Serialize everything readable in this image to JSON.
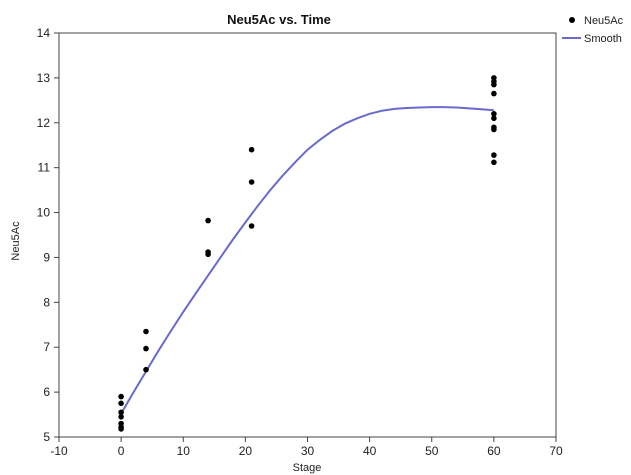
{
  "chart_data": {
    "type": "scatter",
    "title": "Neu5Ac vs. Time",
    "xlabel": "Stage",
    "ylabel": "Neu5Ac",
    "xlim": [
      -10,
      70
    ],
    "ylim": [
      5,
      14
    ],
    "xticks": [
      -10,
      0,
      10,
      20,
      30,
      40,
      50,
      60,
      70
    ],
    "yticks": [
      5,
      6,
      7,
      8,
      9,
      10,
      11,
      12,
      13,
      14
    ],
    "grid": false,
    "legend_position": "top-right, outside plot",
    "series": [
      {
        "name": "Neu5Ac",
        "kind": "points",
        "color": "#000000",
        "points": [
          [
            0,
            5.9
          ],
          [
            0,
            5.75
          ],
          [
            0,
            5.55
          ],
          [
            0,
            5.45
          ],
          [
            0,
            5.3
          ],
          [
            0,
            5.22
          ],
          [
            0,
            5.18
          ],
          [
            4,
            7.35
          ],
          [
            4,
            6.97
          ],
          [
            4,
            6.5
          ],
          [
            14,
            9.82
          ],
          [
            14,
            9.12
          ],
          [
            14,
            9.07
          ],
          [
            21,
            11.4
          ],
          [
            21,
            10.68
          ],
          [
            21,
            9.7
          ],
          [
            60,
            13.0
          ],
          [
            60,
            12.92
          ],
          [
            60,
            12.85
          ],
          [
            60,
            12.65
          ],
          [
            60,
            12.2
          ],
          [
            60,
            12.1
          ],
          [
            60,
            11.9
          ],
          [
            60,
            11.85
          ],
          [
            60,
            11.28
          ],
          [
            60,
            11.12
          ]
        ]
      },
      {
        "name": "Smooth",
        "kind": "line",
        "color": "#6a6acd",
        "points": [
          [
            0,
            5.52
          ],
          [
            2,
            6.0
          ],
          [
            4,
            6.46
          ],
          [
            6,
            6.92
          ],
          [
            8,
            7.36
          ],
          [
            10,
            7.79
          ],
          [
            12,
            8.2
          ],
          [
            14,
            8.6
          ],
          [
            16,
            9.0
          ],
          [
            18,
            9.4
          ],
          [
            20,
            9.78
          ],
          [
            22,
            10.15
          ],
          [
            24,
            10.5
          ],
          [
            26,
            10.82
          ],
          [
            28,
            11.12
          ],
          [
            30,
            11.4
          ],
          [
            32,
            11.62
          ],
          [
            34,
            11.82
          ],
          [
            36,
            11.98
          ],
          [
            38,
            12.1
          ],
          [
            40,
            12.2
          ],
          [
            42,
            12.27
          ],
          [
            44,
            12.31
          ],
          [
            46,
            12.33
          ],
          [
            48,
            12.34
          ],
          [
            50,
            12.35
          ],
          [
            52,
            12.35
          ],
          [
            54,
            12.34
          ],
          [
            56,
            12.32
          ],
          [
            58,
            12.3
          ],
          [
            60,
            12.28
          ]
        ]
      }
    ]
  }
}
